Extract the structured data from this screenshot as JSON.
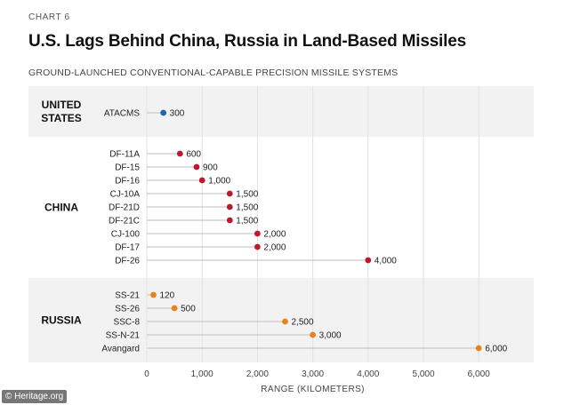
{
  "kicker": "CHART 6",
  "title": "U.S. Lags Behind China, Russia in Land-Based Missiles",
  "subtitle": "GROUND-LAUNCHED CONVENTIONAL-CAPABLE PRECISION MISSILE SYSTEMS",
  "footer": "© Heritage.org",
  "colors": {
    "us": "#1f66a8",
    "china": "#c0182a",
    "russia": "#e7821e",
    "band": "#f2f2f2",
    "line": "#bdbdbd"
  },
  "chart_data": {
    "type": "dot",
    "xlabel": "RANGE (KILOMETERS)",
    "xlim": [
      0,
      6500
    ],
    "xticks": [
      0,
      1000,
      2000,
      3000,
      4000,
      5000,
      6000
    ],
    "xtick_labels": [
      "0",
      "1,000",
      "2,000",
      "3,000",
      "4,000",
      "5,000",
      "6,000"
    ],
    "groups": [
      {
        "name": "UNITED STATES",
        "name_lines": [
          "UNITED",
          "STATES"
        ],
        "color_key": "us",
        "shaded": true,
        "items": [
          {
            "label": "ATACMS",
            "value": 300,
            "value_label": "300"
          }
        ]
      },
      {
        "name": "CHINA",
        "name_lines": [
          "CHINA"
        ],
        "color_key": "china",
        "shaded": false,
        "items": [
          {
            "label": "DF-11A",
            "value": 600,
            "value_label": "600"
          },
          {
            "label": "DF-15",
            "value": 900,
            "value_label": "900"
          },
          {
            "label": "DF-16",
            "value": 1000,
            "value_label": "1,000"
          },
          {
            "label": "CJ-10A",
            "value": 1500,
            "value_label": "1,500"
          },
          {
            "label": "DF-21D",
            "value": 1500,
            "value_label": "1,500"
          },
          {
            "label": "DF-21C",
            "value": 1500,
            "value_label": "1,500"
          },
          {
            "label": "CJ-100",
            "value": 2000,
            "value_label": "2,000"
          },
          {
            "label": "DF-17",
            "value": 2000,
            "value_label": "2,000"
          },
          {
            "label": "DF-26",
            "value": 4000,
            "value_label": "4,000"
          }
        ]
      },
      {
        "name": "RUSSIA",
        "name_lines": [
          "RUSSIA"
        ],
        "color_key": "russia",
        "shaded": true,
        "items": [
          {
            "label": "SS-21",
            "value": 120,
            "value_label": "120"
          },
          {
            "label": "SS-26",
            "value": 500,
            "value_label": "500"
          },
          {
            "label": "SSC-8",
            "value": 2500,
            "value_label": "2,500"
          },
          {
            "label": "SS-N-21",
            "value": 3000,
            "value_label": "3,000"
          },
          {
            "label": "Avangard",
            "value": 6000,
            "value_label": "6,000"
          }
        ]
      }
    ]
  }
}
